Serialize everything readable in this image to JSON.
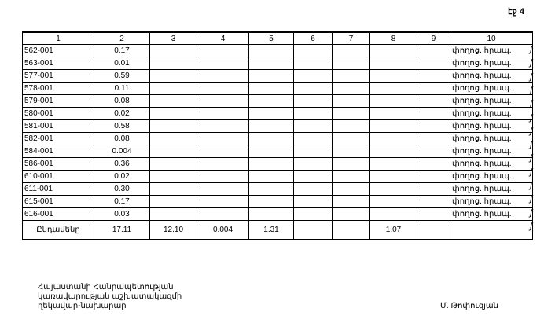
{
  "page_label": "էջ 4",
  "table": {
    "headers": [
      "1",
      "2",
      "3",
      "4",
      "5",
      "6",
      "7",
      "8",
      "9",
      "10"
    ],
    "rows": [
      [
        "562-001",
        "0.17",
        "փողոց. հրապ."
      ],
      [
        "563-001",
        "0.01",
        "փողոց. հրապ."
      ],
      [
        "577-001",
        "0.59",
        "փողոց. հրապ."
      ],
      [
        "578-001",
        "0.11",
        "փողոց. հրապ."
      ],
      [
        "579-001",
        "0.08",
        "փողոց. հրապ."
      ],
      [
        "580-001",
        "0.02",
        "փողոց. հրապ."
      ],
      [
        "581-001",
        "0.58",
        "փողոց. հրապ."
      ],
      [
        "582-001",
        "0.08",
        "փողոց. հրապ."
      ],
      [
        "584-001",
        "0.004",
        "փողոց. հրապ."
      ],
      [
        "586-001",
        "0.36",
        "փողոց. հրապ."
      ],
      [
        "610-001",
        "0.02",
        "փողոց. հրապ."
      ],
      [
        "611-001",
        "0.30",
        "փողոց. հրապ."
      ],
      [
        "615-001",
        "0.17",
        "փողոց. հրապ."
      ],
      [
        "616-001",
        "0.03",
        "փողոց. հրապ."
      ]
    ],
    "total": {
      "label": "Ընդամենը",
      "c2": "17.11",
      "c3": "12.10",
      "c4": "0.004",
      "c5": "1.31",
      "c8": "1.07"
    }
  },
  "signature": {
    "line1": "Հայաստանի Հանրապետության",
    "line2": "կառավարության աշխատակազմի",
    "line3": "ղեկավար-նախարար",
    "name": "Մ. Թոփուզյան"
  }
}
